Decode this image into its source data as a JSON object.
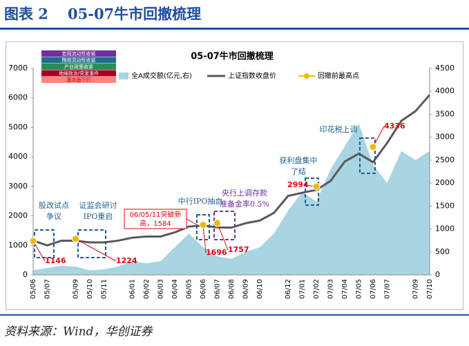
{
  "header": {
    "label": "图表 2",
    "title": "05-07牛市回撤梳理"
  },
  "source": "资料来源：Wind，华创证券",
  "chart_data": {
    "type": "line",
    "title": "05-07牛市回撤梳理",
    "categories": [
      "05/06",
      "05/07",
      null,
      "05/09",
      "05/10",
      "05/11",
      null,
      "06/01",
      "06/02",
      "06/03",
      "06/04",
      "06/05",
      "06/06",
      "06/07",
      "06/08",
      "06/09",
      "06/10",
      null,
      "06/12",
      "07/01",
      "07/02",
      "07/03",
      "07/04",
      "07/05",
      "07/06",
      "07/07",
      null,
      "07/09",
      "07/10"
    ],
    "series": [
      {
        "name": "全A成交额(亿元,右)",
        "color": "#a9d4e2",
        "kind": "area",
        "axis": "y2",
        "values": [
          100,
          150,
          200,
          180,
          100,
          120,
          180,
          300,
          250,
          300,
          600,
          900,
          600,
          400,
          350,
          500,
          600,
          900,
          1400,
          1800,
          1600,
          2300,
          2800,
          3300,
          2400,
          2000,
          2700,
          2500,
          2700
        ]
      },
      {
        "name": "上证指数收盘价",
        "color": "#595959",
        "kind": "line",
        "values": [
          1160,
          1000,
          1160,
          1155,
          1100,
          1100,
          1160,
          1260,
          1300,
          1300,
          1440,
          1640,
          1670,
          1610,
          1600,
          1750,
          1840,
          2100,
          2675,
          2785,
          2880,
          3180,
          3840,
          4110,
          3820,
          4470,
          5220,
          5550,
          6100
        ]
      }
    ],
    "peaks": {
      "name": "回撤前最高点",
      "color": "#f5b800",
      "x": [
        "05/06",
        "05/09",
        "06/06",
        "06/07",
        "07/02",
        "07/06"
      ],
      "values": [
        1146,
        1224,
        1696,
        1757,
        2994,
        4336
      ]
    },
    "note": "06/05/11突破新高，1584",
    "annotations": [
      {
        "lines": [
          "股改试点",
          "争议"
        ],
        "color": "#1f5f8b"
      },
      {
        "lines": [
          "证监会研讨",
          "IPO重启"
        ],
        "color": "#1f5f8b"
      },
      {
        "lines": [
          "中行IPO抽血"
        ],
        "color": "#1f5f8b"
      },
      {
        "lines": [
          "央行上调存款",
          "准备金率0.5%"
        ],
        "color": "#7030a0"
      },
      {
        "lines": [
          "获利盘集中",
          "了结"
        ],
        "color": "#1f5f8b"
      },
      {
        "lines": [
          "印花税上调"
        ],
        "color": "#1f5f8b"
      }
    ],
    "event_legend": [
      {
        "label": "宏观流动性收紧",
        "color": "#7030a0"
      },
      {
        "label": "微观流动性收紧",
        "color": "#1f6e8c"
      },
      {
        "label": "产业政策收紧",
        "color": "#2e8b57"
      },
      {
        "label": "地缘政治/突发事件",
        "color": "#a50021"
      },
      {
        "label": "基本面下行",
        "color": "#ff8080"
      }
    ],
    "ylim": [
      0,
      7000
    ],
    "yticks": [
      0,
      1000,
      2000,
      3000,
      4000,
      5000,
      6000,
      7000
    ],
    "y2lim": [
      0,
      4500
    ],
    "y2ticks": [
      0,
      500,
      1000,
      1500,
      2000,
      2500,
      3000,
      3500,
      4000,
      4500
    ]
  }
}
